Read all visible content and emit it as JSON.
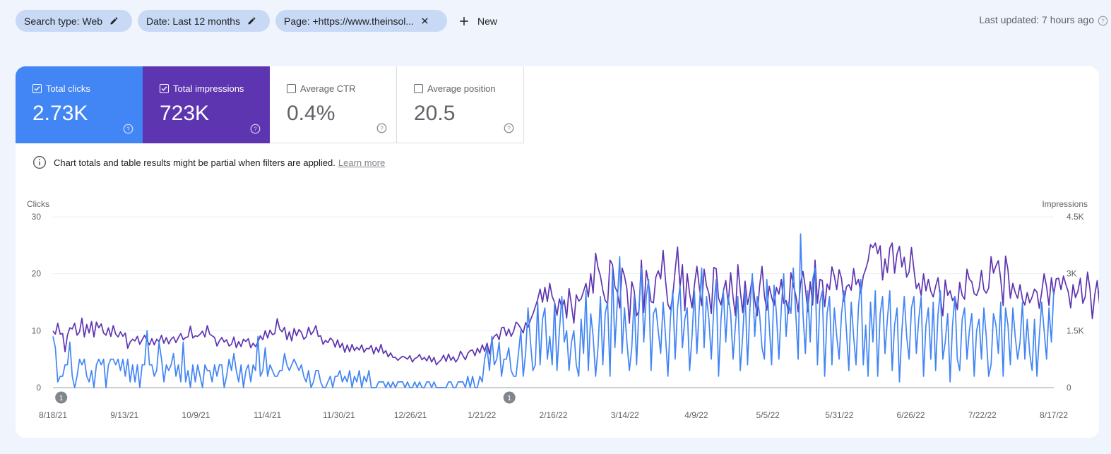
{
  "filters": {
    "search_type": "Search type: Web",
    "date": "Date: Last 12 months",
    "page": "Page: +https://www.theinsol...",
    "new_label": "New"
  },
  "last_updated": "Last updated: 7 hours ago",
  "metrics": [
    {
      "label": "Total clicks",
      "value": "2.73K",
      "checked": true,
      "color": "#4285f4"
    },
    {
      "label": "Total impressions",
      "value": "723K",
      "checked": true,
      "color": "#5e35b1"
    },
    {
      "label": "Average CTR",
      "value": "0.4%",
      "checked": false,
      "color": "#ffffff"
    },
    {
      "label": "Average position",
      "value": "20.5",
      "checked": false,
      "color": "#ffffff"
    }
  ],
  "notice": {
    "text": "Chart totals and table results might be partial when filters are applied.",
    "link": "Learn more"
  },
  "chart_data": {
    "type": "line",
    "left_axis": {
      "label": "Clicks",
      "ticks": [
        "0",
        "10",
        "20",
        "30"
      ],
      "range": [
        0,
        30
      ]
    },
    "right_axis": {
      "label": "Impressions",
      "ticks": [
        "0",
        "1.5K",
        "3K",
        "4.5K"
      ],
      "range": [
        0,
        4500
      ]
    },
    "x_ticks": [
      "8/18/21",
      "9/13/21",
      "10/9/21",
      "11/4/21",
      "11/30/21",
      "12/26/21",
      "1/21/22",
      "2/16/22",
      "3/14/22",
      "4/9/22",
      "5/5/22",
      "5/31/22",
      "6/26/22",
      "7/22/22",
      "8/17/22"
    ],
    "annotation_markers": [
      {
        "date": "8/21/21",
        "label": "1"
      },
      {
        "date": "1/31/22",
        "label": "1"
      }
    ],
    "grid": true,
    "series": [
      {
        "name": "Clicks",
        "axis": "left",
        "color": "#4285f4",
        "values": [
          9,
          7,
          1,
          2,
          2,
          4,
          4,
          8,
          2,
          0,
          2,
          5,
          4,
          5,
          2,
          1,
          3,
          0,
          4,
          5,
          4,
          5,
          0,
          4,
          5,
          5,
          4,
          5,
          3,
          5,
          2,
          5,
          1,
          4,
          1,
          4,
          0,
          4,
          4,
          10,
          4,
          4,
          2,
          3,
          8,
          5,
          1,
          4,
          3,
          4,
          6,
          2,
          4,
          1,
          8,
          1,
          3,
          0,
          4,
          1,
          4,
          2,
          0,
          4,
          3,
          3,
          1,
          4,
          2,
          4,
          4,
          0,
          2,
          5,
          3,
          6,
          3,
          1,
          4,
          0,
          3,
          4,
          1,
          4,
          3,
          9,
          2,
          3,
          7,
          2,
          4,
          3,
          2,
          2,
          3,
          3,
          6,
          4,
          3,
          4,
          5,
          4,
          3,
          4,
          2,
          1,
          3,
          0,
          1,
          3,
          3,
          1,
          0,
          0,
          1,
          2,
          0,
          2,
          2,
          3,
          1,
          2,
          1,
          3,
          0,
          2,
          1,
          3,
          0,
          2,
          1,
          3,
          0,
          0,
          0,
          1,
          1,
          1,
          0,
          1,
          0,
          1,
          0,
          1,
          1,
          1,
          0,
          1,
          0,
          0,
          1,
          0,
          1,
          0,
          0,
          1,
          1,
          0,
          1,
          0,
          0,
          0,
          0,
          0,
          1,
          1,
          0,
          0,
          1,
          1,
          1,
          0,
          2,
          0,
          2,
          0,
          0,
          2,
          1,
          5,
          7,
          3,
          9,
          4,
          5,
          8,
          2,
          5,
          5,
          7,
          3,
          2,
          2,
          6,
          10,
          2,
          6,
          14,
          8,
          3,
          4,
          15,
          4,
          12,
          14,
          5,
          9,
          4,
          15,
          3,
          10,
          16,
          8,
          10,
          3,
          8,
          10,
          4,
          2,
          12,
          6,
          17,
          3,
          13,
          9,
          2,
          7,
          16,
          4,
          13,
          15,
          2,
          21,
          7,
          15,
          23,
          6,
          14,
          8,
          3,
          7,
          16,
          4,
          14,
          21,
          8,
          16,
          19,
          3,
          13,
          14,
          10,
          6,
          15,
          9,
          2,
          12,
          17,
          5,
          14,
          18,
          7,
          12,
          14,
          3,
          9,
          17,
          6,
          14,
          21,
          7,
          16,
          12,
          5,
          14,
          19,
          2,
          12,
          17,
          8,
          16,
          13,
          5,
          11,
          16,
          3,
          9,
          17,
          4,
          14,
          20,
          9,
          16,
          13,
          7,
          5,
          19,
          11,
          4,
          18,
          13,
          5,
          14,
          20,
          9,
          15,
          13,
          21,
          13,
          5,
          27,
          13,
          6,
          17,
          8,
          19,
          21,
          4,
          15,
          17,
          2,
          13,
          16,
          4,
          14,
          9,
          5,
          13,
          17,
          10,
          3,
          15,
          9,
          4,
          14,
          19,
          4,
          11,
          2,
          15,
          8,
          17,
          2,
          13,
          16,
          6,
          12,
          17,
          3,
          11,
          14,
          1,
          10,
          16,
          9,
          5,
          14,
          16,
          6,
          12,
          16,
          2,
          11,
          14,
          5,
          15,
          3,
          13,
          17,
          5,
          8,
          13,
          1,
          11,
          16,
          5,
          3,
          12,
          14,
          5,
          10,
          13,
          2,
          10,
          12,
          5,
          14,
          9,
          2,
          4,
          13,
          11,
          6,
          15,
          2,
          14,
          11,
          4,
          14,
          9,
          5,
          8,
          15,
          5,
          12,
          6,
          3,
          12,
          2,
          9,
          15,
          10,
          5,
          14,
          8,
          17
        ]
      },
      {
        "name": "Impressions",
        "axis": "left-scaled",
        "color": "#5e35b1",
        "values": [
          9.9,
          9.4,
          11.3,
          9.4,
          9.5,
          6.3,
          9.2,
          10.5,
          10.3,
          11.3,
          9.2,
          9.8,
          12.2,
          8.9,
          11.1,
          9.6,
          11.6,
          8.9,
          11.5,
          10.5,
          11.2,
          9.6,
          9.2,
          10.5,
          9.0,
          10.9,
          9.4,
          8.9,
          9.8,
          9.0,
          9.6,
          6.9,
          8.0,
          8.5,
          8.2,
          9.0,
          7.6,
          8.4,
          9.2,
          8.3,
          7.5,
          8.6,
          7.5,
          8.5,
          8.1,
          9.2,
          7.8,
          8.8,
          7.7,
          8.5,
          8.9,
          7.9,
          8.8,
          9.5,
          8.4,
          8.8,
          8.9,
          10.8,
          8.7,
          9.1,
          9.0,
          9.4,
          9.9,
          8.9,
          10.9,
          9.4,
          9.1,
          8.8,
          7.3,
          8.2,
          8.8,
          8.0,
          8.4,
          7.3,
          7.6,
          8.9,
          7.0,
          8.1,
          7.2,
          8.5,
          8.1,
          8.6,
          7.0,
          7.8,
          7.2,
          8.0,
          9.1,
          8.4,
          10.0,
          8.7,
          10.1,
          9.3,
          9.5,
          12.1,
          10.3,
          9.8,
          10.6,
          8.4,
          9.8,
          8.2,
          10.4,
          9.1,
          10.2,
          9.7,
          8.5,
          8.9,
          10.6,
          9.3,
          9.9,
          10.9,
          9.0,
          9.1,
          7.6,
          8.3,
          7.9,
          8.7,
          8.3,
          7.1,
          8.4,
          7.0,
          7.8,
          6.2,
          7.5,
          6.3,
          7.6,
          6.5,
          7.1,
          6.6,
          7.5,
          6.2,
          6.9,
          6.8,
          7.4,
          5.9,
          7.1,
          6.2,
          7.6,
          6.0,
          6.5,
          5.4,
          6.1,
          5.3,
          5.3,
          4.8,
          5.2,
          5.5,
          5.3,
          5.0,
          5.6,
          4.5,
          5.1,
          5.3,
          5.8,
          4.9,
          5.3,
          4.7,
          5.6,
          4.5,
          5.3,
          4.0,
          4.5,
          4.9,
          5.7,
          4.6,
          5.9,
          4.8,
          5.4,
          4.5,
          5.1,
          6.4,
          5.6,
          4.9,
          6.0,
          6.5,
          6.6,
          5.6,
          6.9,
          6.1,
          7.5,
          6.4,
          7.8,
          5.9,
          8.3,
          9.0,
          9.4,
          8.4,
          10.5,
          10.6,
          9.1,
          10.3,
          9.0,
          9.9,
          11.5,
          11.1,
          10.4,
          9.6,
          11.4,
          10.6,
          11.9,
          12.9,
          14.2,
          15.5,
          17.3,
          15.0,
          17.6,
          15.1,
          18.3,
          16.0,
          15.0,
          12.7,
          15.6,
          14.0,
          15.4,
          12.2,
          17.4,
          14.5,
          11.3,
          16.3,
          15.2,
          15.6,
          16.9,
          18.3,
          15.9,
          20.0,
          16.6,
          23.6,
          21.1,
          19.6,
          17.1,
          15.3,
          14.7,
          22.4,
          21.6,
          17.7,
          16.8,
          14.0,
          21.0,
          19.6,
          17.3,
          11.3,
          18.6,
          17.0,
          12.6,
          13.5,
          22.4,
          13.2,
          20.6,
          18.2,
          15.1,
          14.9,
          19.4,
          20.5,
          19.1,
          24.1,
          18.8,
          14.6,
          13.7,
          16.0,
          20.6,
          24.7,
          17.6,
          21.6,
          13.5,
          20.0,
          16.5,
          14.0,
          18.0,
          21.3,
          17.7,
          14.4,
          20.8,
          17.9,
          16.5,
          13.0,
          21.1,
          20.9,
          15.7,
          14.5,
          17.0,
          18.8,
          14.6,
          20.2,
          15.9,
          12.6,
          21.6,
          17.0,
          13.2,
          18.7,
          14.6,
          16.6,
          19.3,
          15.4,
          12.6,
          17.7,
          21.3,
          16.1,
          13.6,
          17.8,
          15.9,
          14.4,
          17.6,
          16.4,
          19.0,
          14.8,
          15.3,
          13.0,
          20.2,
          18.0,
          16.2,
          13.3,
          18.3,
          20.4,
          17.5,
          13.3,
          18.6,
          14.5,
          22.4,
          14.8,
          19.0,
          18.8,
          14.2,
          18.2,
          17.2,
          21.2,
          19.6,
          17.2,
          20.7,
          19.1,
          15.1,
          17.7,
          18.1,
          17.1,
          20.9,
          18.1,
          19.0,
          16.6,
          19.6,
          20.8,
          22.3,
          25.1,
          24.6,
          25.4,
          23.5,
          24.9,
          18.9,
          22.6,
          20.2,
          24.5,
          25.4,
          20.1,
          23.5,
          24.8,
          21.2,
          22.9,
          19.4,
          20.3,
          24.6,
          20.7,
          17.4,
          18.3,
          16.2,
          20.0,
          17.0,
          19.0,
          16.9,
          15.9,
          17.8,
          19.3,
          15.8,
          12.6,
          18.9,
          16.2,
          17.0,
          15.3,
          15.9,
          13.7,
          18.5,
          16.2,
          15.5,
          20.8,
          19.0,
          18.6,
          16.5,
          16.2,
          17.4,
          20.6,
          17.2,
          16.6,
          17.5,
          23.0,
          20.1,
          21.4,
          22.3,
          19.0,
          14.4,
          23.1,
          20.7,
          15.7,
          18.3,
          16.7,
          15.7,
          18.1,
          15.5,
          14.5,
          16.7,
          14.9,
          15.9,
          17.3,
          16.8,
          13.9,
          16.8,
          20.0,
          17.7,
          14.4,
          19.3,
          16.3,
          19.1,
          19.2,
          17.2,
          19.6,
          18.1,
          16.8,
          14.0,
          18.1,
          15.8,
          16.9,
          19.2,
          14.8,
          15.9,
          20.3,
          17.3,
          12.1,
          16.3,
          18.8,
          14.5,
          15.4,
          17.8,
          19.0,
          15.8,
          16.5,
          14.3,
          17.2,
          17.3,
          18.4,
          15.8,
          17.6,
          15.7,
          18.4,
          16.2,
          13.9,
          16.6,
          17.1,
          17.1,
          16.2,
          18.4,
          15.9,
          19.7,
          20.7,
          17.1,
          19.2,
          17.8,
          18.6,
          15.3,
          19.5,
          17.5,
          17.7,
          17.3,
          18.5,
          17.9,
          18.9,
          16.2,
          20.9,
          15.9,
          15.3,
          17.6,
          15.3,
          17.7,
          16.1,
          14.2,
          16.4,
          13.6,
          17.6,
          14.6,
          13.9,
          16.8,
          13.4,
          16.7,
          17.2,
          16.2,
          17.8,
          17.5,
          12.4,
          16.0,
          16.1,
          16.5,
          16.3,
          17.6,
          18.6,
          17.4,
          17.1,
          14.3,
          18.9,
          18.0,
          17.9,
          16.4,
          18.8,
          17.3,
          18.0,
          16.8,
          21.2,
          19.0,
          17.9,
          16.1,
          17.4,
          14.3,
          17.9,
          14.0,
          16.9,
          16.6,
          13.8,
          16.6,
          15.8,
          18.9,
          17.9,
          17.5,
          13.7,
          17.9,
          18.9,
          12.8,
          16.3,
          17.1,
          16.0,
          17.9,
          17.0,
          17.5,
          16.1,
          17.7,
          16.5,
          16.2,
          17.8,
          16.0,
          15.6,
          18.3,
          17.1,
          16.7,
          17.5,
          16.4,
          18.4,
          17.7,
          17.1,
          17.1,
          16.5,
          18.1,
          18.9,
          16.7
        ]
      }
    ]
  }
}
